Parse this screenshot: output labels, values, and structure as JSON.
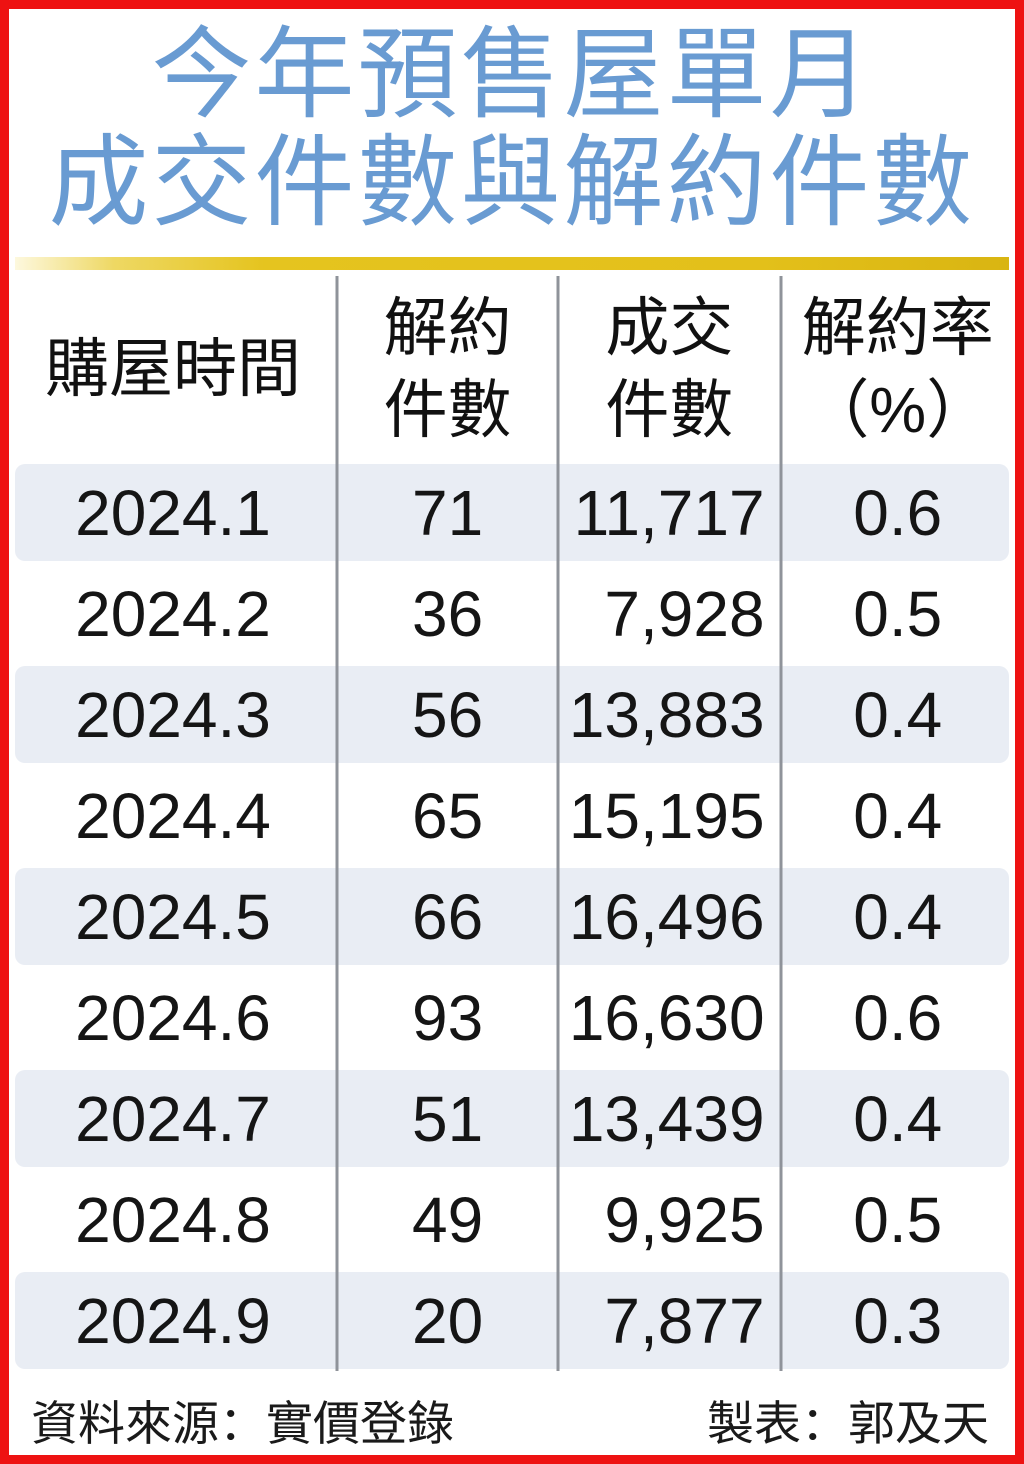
{
  "title": {
    "line1": "今年預售屋單月",
    "line2": "成交件數與解約件數"
  },
  "table": {
    "headers": [
      {
        "label": "購屋時間"
      },
      {
        "label": "解約\n件數"
      },
      {
        "label": "成交\n件數"
      },
      {
        "label": "解約率\n（%）"
      }
    ],
    "rows": [
      {
        "period": "2024.1",
        "cancellations": "71",
        "deals": "11,717",
        "rate": "0.6"
      },
      {
        "period": "2024.2",
        "cancellations": "36",
        "deals": "7,928",
        "rate": "0.5"
      },
      {
        "period": "2024.3",
        "cancellations": "56",
        "deals": "13,883",
        "rate": "0.4"
      },
      {
        "period": "2024.4",
        "cancellations": "65",
        "deals": "15,195",
        "rate": "0.4"
      },
      {
        "period": "2024.5",
        "cancellations": "66",
        "deals": "16,496",
        "rate": "0.4"
      },
      {
        "period": "2024.6",
        "cancellations": "93",
        "deals": "16,630",
        "rate": "0.6"
      },
      {
        "period": "2024.7",
        "cancellations": "51",
        "deals": "13,439",
        "rate": "0.4"
      },
      {
        "period": "2024.8",
        "cancellations": "49",
        "deals": "9,925",
        "rate": "0.5"
      },
      {
        "period": "2024.9",
        "cancellations": "20",
        "deals": "7,877",
        "rate": "0.3"
      }
    ]
  },
  "footer": {
    "source": "資料來源：實價登錄",
    "credit": "製表：郭及天"
  },
  "colors": {
    "title_blue": "#699bd2",
    "rule_gold": "#e5c41f",
    "border_red": "#ee1212",
    "stripe": "#e9edf4",
    "divider": "#8f939a"
  },
  "chart_data": {
    "type": "table",
    "title": "今年預售屋單月成交件數與解約件數",
    "columns": [
      "購屋時間",
      "解約件數",
      "成交件數",
      "解約率（%）"
    ],
    "rows": [
      [
        "2024.1",
        71,
        11717,
        0.6
      ],
      [
        "2024.2",
        36,
        7928,
        0.5
      ],
      [
        "2024.3",
        56,
        13883,
        0.4
      ],
      [
        "2024.4",
        65,
        15195,
        0.4
      ],
      [
        "2024.5",
        66,
        16496,
        0.4
      ],
      [
        "2024.6",
        93,
        16630,
        0.6
      ],
      [
        "2024.7",
        51,
        13439,
        0.4
      ],
      [
        "2024.8",
        49,
        9925,
        0.5
      ],
      [
        "2024.9",
        20,
        7877,
        0.3
      ]
    ],
    "source": "資料來源：實價登錄",
    "credit": "製表：郭及天"
  }
}
